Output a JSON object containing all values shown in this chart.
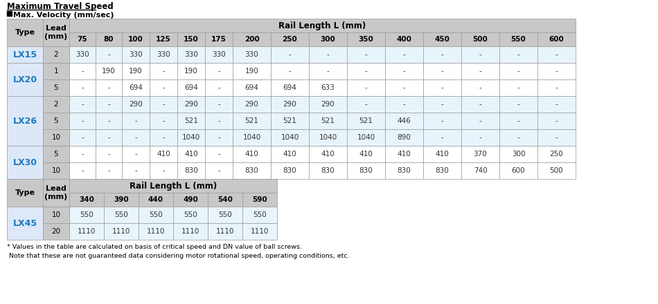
{
  "title": "Maximum Travel Speed",
  "subtitle": "Max. Velocity (mm/sec)",
  "header_bg": "#c8c8c8",
  "type_col_bg": "#dce8f8",
  "data_bg": "#e8f4fb",
  "white": "#ffffff",
  "type_color": "#1a7abf",
  "text_color": "#333333",
  "border_color": "#999999",
  "footnote1": "* Values in the table are calculated on basis of critical speed and DN value of ball screws.",
  "footnote2": " Note that these are not guaranteed data considering motor rotational speed, operating conditions, etc.",
  "main_col_headers": [
    "75",
    "80",
    "100",
    "125",
    "150",
    "175",
    "200",
    "250",
    "300",
    "350",
    "400",
    "450",
    "500",
    "550",
    "600"
  ],
  "main_rows": [
    {
      "type": "LX15",
      "lead": "2",
      "vals": [
        "330",
        "-",
        "330",
        "330",
        "330",
        "330",
        "330",
        "-",
        "-",
        "-",
        "-",
        "-",
        "-",
        "-",
        "-"
      ]
    },
    {
      "type": "LX20",
      "lead": "1",
      "vals": [
        "-",
        "190",
        "190",
        "-",
        "190",
        "-",
        "190",
        "-",
        "-",
        "-",
        "-",
        "-",
        "-",
        "-",
        "-"
      ]
    },
    {
      "type": "LX20",
      "lead": "5",
      "vals": [
        "-",
        "-",
        "694",
        "-",
        "694",
        "-",
        "694",
        "694",
        "633",
        "-",
        "-",
        "-",
        "-",
        "-",
        "-"
      ]
    },
    {
      "type": "LX26",
      "lead": "2",
      "vals": [
        "-",
        "-",
        "290",
        "-",
        "290",
        "-",
        "290",
        "290",
        "290",
        "-",
        "-",
        "-",
        "-",
        "-",
        "-"
      ]
    },
    {
      "type": "LX26",
      "lead": "5",
      "vals": [
        "-",
        "-",
        "-",
        "-",
        "521",
        "-",
        "521",
        "521",
        "521",
        "521",
        "446",
        "-",
        "-",
        "-",
        "-"
      ]
    },
    {
      "type": "LX26",
      "lead": "10",
      "vals": [
        "-",
        "-",
        "-",
        "-",
        "1040",
        "-",
        "1040",
        "1040",
        "1040",
        "1040",
        "890",
        "-",
        "-",
        "-",
        "-"
      ]
    },
    {
      "type": "LX30",
      "lead": "5",
      "vals": [
        "-",
        "-",
        "-",
        "410",
        "410",
        "-",
        "410",
        "410",
        "410",
        "410",
        "410",
        "410",
        "370",
        "300",
        "250"
      ]
    },
    {
      "type": "LX30",
      "lead": "10",
      "vals": [
        "-",
        "-",
        "-",
        "-",
        "830",
        "-",
        "830",
        "830",
        "830",
        "830",
        "830",
        "830",
        "740",
        "600",
        "500"
      ]
    }
  ],
  "type_groups": [
    {
      "name": "LX15",
      "start": 0,
      "end": 0,
      "bg_index": 0
    },
    {
      "name": "LX20",
      "start": 1,
      "end": 2,
      "bg_index": 1
    },
    {
      "name": "LX26",
      "start": 3,
      "end": 5,
      "bg_index": 0
    },
    {
      "name": "LX30",
      "start": 6,
      "end": 7,
      "bg_index": 1
    }
  ],
  "sub_col_headers": [
    "340",
    "390",
    "440",
    "490",
    "540",
    "590"
  ],
  "sub_rows": [
    {
      "type": "LX45",
      "lead": "10",
      "vals": [
        "550",
        "550",
        "550",
        "550",
        "550",
        "550"
      ]
    },
    {
      "type": "LX45",
      "lead": "20",
      "vals": [
        "1110",
        "1110",
        "1110",
        "1110",
        "1110",
        "1110"
      ]
    }
  ]
}
